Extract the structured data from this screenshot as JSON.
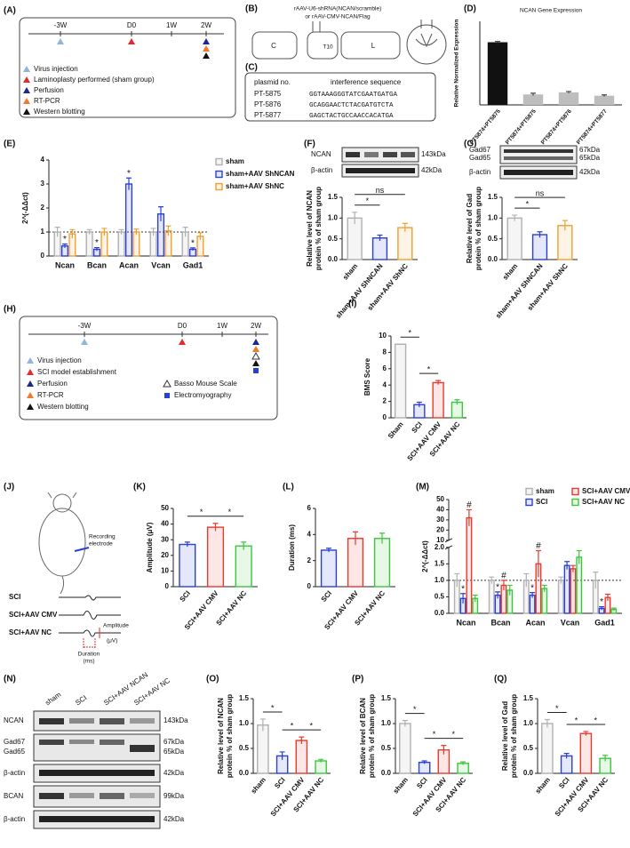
{
  "panels": {
    "A": {
      "label": "(A)",
      "timeline": [
        "-3W",
        "D0",
        "1W",
        "2W"
      ],
      "legend": [
        "Virus injection",
        "Laminoplasty performed (sham group)",
        "Perfusion",
        "RT-PCR",
        "Western blotting"
      ]
    },
    "B": {
      "label": "(B)",
      "construct": [
        "rAAV-U6-shRNA(NCAN/scramble)",
        "or rAAV-CMV-NCAN/Flag"
      ],
      "segments": [
        "C",
        "T10",
        "L"
      ]
    },
    "C": {
      "label": "(C)",
      "header": [
        "plasmid no.",
        "interference sequence"
      ],
      "rows": [
        [
          "PT-5875",
          "GGTAAAGGGTATCGAATGATGA"
        ],
        [
          "PT-5876",
          "GCAGGAACTCTACGATGTCTA"
        ],
        [
          "PT-5877",
          "GAGCTACTGCCAACCACATGA"
        ]
      ]
    },
    "H": {
      "label": "(H)",
      "timeline": [
        "-3W",
        "D0",
        "1W",
        "2W"
      ],
      "legend": [
        "Virus injection",
        "SCI model establishment",
        "Perfusion",
        "RT-PCR",
        "Western blotting"
      ],
      "legend2": [
        "Basso Mouse Scale",
        "Electromyography"
      ]
    },
    "J": {
      "label": "(J)",
      "electrode": [
        "Recording",
        "electrode"
      ],
      "traces": [
        "SCI",
        "SCI+AAV CMV",
        "SCI+AAV NC"
      ],
      "duration": [
        "Duration",
        "(ms)"
      ],
      "amplitude": [
        "Amplitude",
        "(μV)"
      ]
    },
    "N": {
      "label": "(N)",
      "lanes": [
        "sham",
        "SCI",
        "SCI+AAV NCAN",
        "SCI+AAV NC"
      ],
      "rows": [
        {
          "names": [
            "NCAN"
          ],
          "sizes": [
            "143kDa"
          ]
        },
        {
          "names": [
            "Gad67",
            "Gad65"
          ],
          "sizes": [
            "67kDa",
            "65kDa"
          ]
        },
        {
          "names": [
            "β-actin"
          ],
          "sizes": [
            "42kDa"
          ]
        },
        {
          "names": [
            "BCAN"
          ],
          "sizes": [
            "99kDa"
          ]
        },
        {
          "names": [
            "β-actin"
          ],
          "sizes": [
            "42kDa"
          ]
        }
      ]
    }
  },
  "chart_data": [
    {
      "type": "bar",
      "label": "(D)",
      "title": "NCAN Gene Expression",
      "ylabel": [
        "Relative Normalized Expression"
      ],
      "categories": [
        "PT5874+PT5875",
        "PT5874+PT5875",
        "PT5874+PT5876",
        "PT5874+PT5877"
      ],
      "values": [
        1.5,
        0.25,
        0.3,
        0.22
      ],
      "errors": [
        0.02,
        0.03,
        0.02,
        0.02
      ],
      "colors": [
        "#111111",
        "#bdbdbd",
        "#bdbdbd",
        "#bdbdbd"
      ],
      "ylim": [
        0,
        2
      ],
      "bar_style": "solid"
    },
    {
      "type": "bar",
      "label": "(E)",
      "ylabel": [
        "2^(-ΔΔct)"
      ],
      "categories": [
        "Ncan",
        "Bcan",
        "Acan",
        "Vcan",
        "Gad1"
      ],
      "series": [
        {
          "name": "sham",
          "color": "#b0b0b0",
          "values": [
            1,
            1,
            1,
            1,
            1
          ],
          "errors": [
            0.2,
            0.1,
            0.1,
            0.15,
            0.2
          ]
        },
        {
          "name": "sham+AAV ShNCAN",
          "color": "#2a3fd6",
          "values": [
            0.42,
            0.28,
            3.0,
            1.75,
            0.28
          ],
          "errors": [
            0.08,
            0.07,
            0.25,
            0.3,
            0.06
          ]
        },
        {
          "name": "sham+AAV ShNC",
          "color": "#f0a030",
          "values": [
            0.92,
            1.0,
            1.0,
            1.05,
            0.82
          ],
          "errors": [
            0.18,
            0.15,
            0.12,
            0.2,
            0.15
          ]
        }
      ],
      "ylim": [
        0,
        4
      ],
      "yticks": [
        0,
        1,
        2,
        3,
        4
      ],
      "reference_line": 1,
      "legend": "right",
      "bar_style": "outline",
      "markers": [
        {
          "category": 0,
          "series": 1,
          "label": "*"
        },
        {
          "category": 1,
          "series": 1,
          "label": "*"
        },
        {
          "category": 2,
          "series": 1,
          "label": "*"
        },
        {
          "category": 4,
          "series": 1,
          "label": "*"
        }
      ]
    },
    {
      "type": "bar",
      "label": "(F)",
      "blot": {
        "names": [
          "NCAN",
          "β-actin"
        ],
        "sizes": [
          "143kDa",
          "42kDa"
        ]
      },
      "ylabel": [
        "Relative level of NCAN",
        "protein % of sham group"
      ],
      "categories": [
        "sham",
        "sham+AAV ShNCAN",
        "sham+AAV ShNC"
      ],
      "values": [
        1.0,
        0.52,
        0.77
      ],
      "errors": [
        0.14,
        0.07,
        0.1
      ],
      "colors": [
        "#b0b0b0",
        "#2a3fd6",
        "#f0a030"
      ],
      "ylim": [
        0,
        1.5
      ],
      "yticks": [
        {
          "value": 0,
          "label": "0.0"
        },
        0.5,
        {
          "value": 1,
          "label": "1.0"
        },
        1.5
      ],
      "bar_style": "outline",
      "comparisons": [
        {
          "pair": [
            0,
            1
          ],
          "label": "*"
        },
        {
          "pair": [
            0,
            2
          ],
          "label": "ns"
        }
      ]
    },
    {
      "type": "bar",
      "label": "(G)",
      "blot": {
        "names": [
          "Gad67",
          "Gad65",
          "β-actin"
        ],
        "sizes": [
          "67kDa",
          "65kDa",
          "42kDa"
        ]
      },
      "ylabel": [
        "Relative level of Gad",
        "protein % of sham group"
      ],
      "categories": [
        "sham",
        "sham+AAV ShNCAN",
        "sham+AAV ShNC"
      ],
      "values": [
        1.0,
        0.6,
        0.82
      ],
      "errors": [
        0.07,
        0.07,
        0.12
      ],
      "colors": [
        "#b0b0b0",
        "#2a3fd6",
        "#f0a030"
      ],
      "ylim": [
        0,
        1.5
      ],
      "yticks": [
        {
          "value": 0,
          "label": "0.0"
        },
        0.5,
        {
          "value": 1,
          "label": "1.0"
        },
        1.5
      ],
      "bar_style": "outline",
      "comparisons": [
        {
          "pair": [
            0,
            1
          ],
          "label": "*"
        },
        {
          "pair": [
            0,
            2
          ],
          "label": "ns"
        }
      ]
    },
    {
      "type": "bar",
      "label": "(I)",
      "ylabel": [
        "BMS Score"
      ],
      "categories": [
        "Sham",
        "SCI",
        "SCI+AAV CMV",
        "SCI+AAV NC"
      ],
      "values": [
        9,
        1.6,
        4.3,
        1.9
      ],
      "errors": [
        0,
        0.3,
        0.25,
        0.3
      ],
      "colors": [
        "#b0b0b0",
        "#2a3fd6",
        "#e83a2e",
        "#3cc63c"
      ],
      "ylim": [
        0,
        10
      ],
      "yticks": [
        0,
        2,
        4,
        6,
        8,
        10
      ],
      "bar_style": "outline",
      "comparisons": [
        {
          "pair": [
            0,
            1
          ],
          "label": "*"
        },
        {
          "pair": [
            1,
            2
          ],
          "label": "*"
        }
      ]
    },
    {
      "type": "bar",
      "label": "(K)",
      "ylabel": [
        "Amplitude (μV)"
      ],
      "categories": [
        "SCI",
        "SCI+AAV CMV",
        "SCI+AAV NC"
      ],
      "values": [
        27,
        38,
        26
      ],
      "errors": [
        1.5,
        2.5,
        2.5
      ],
      "colors": [
        "#2a3fd6",
        "#e83a2e",
        "#3cc63c"
      ],
      "ylim": [
        0,
        50
      ],
      "yticks": [
        0,
        10,
        20,
        30,
        40,
        50
      ],
      "bar_style": "outline",
      "comparisons": [
        {
          "pair": [
            0,
            1
          ],
          "label": "*"
        },
        {
          "pair": [
            1,
            2
          ],
          "label": "*"
        }
      ]
    },
    {
      "type": "bar",
      "label": "(L)",
      "ylabel": [
        "Duration (ms)"
      ],
      "categories": [
        "SCI",
        "SCI+AAV CMV",
        "SCI+AAV NC"
      ],
      "values": [
        2.8,
        3.7,
        3.7
      ],
      "errors": [
        0.15,
        0.5,
        0.4
      ],
      "colors": [
        "#2a3fd6",
        "#e83a2e",
        "#3cc63c"
      ],
      "ylim": [
        0,
        6
      ],
      "yticks": [
        0,
        2,
        4,
        6
      ],
      "bar_style": "outline"
    },
    {
      "type": "bar",
      "label": "(M)",
      "ylabel": [
        "2^(-ΔΔct)"
      ],
      "categories": [
        "Ncan",
        "Bcan",
        "Acan",
        "Vcan",
        "Gad1"
      ],
      "series": [
        {
          "name": "sham",
          "color": "#b0b0b0",
          "values": [
            1,
            1,
            1,
            1,
            1
          ],
          "errors": [
            0.2,
            0.1,
            0.2,
            0.1,
            0.25
          ]
        },
        {
          "name": "SCI",
          "color": "#2a3fd6",
          "values": [
            0.45,
            0.55,
            0.55,
            1.45,
            0.15
          ],
          "errors": [
            0.15,
            0.1,
            0.08,
            0.12,
            0.05
          ]
        },
        {
          "name": "SCI+AAV CMV",
          "color": "#e83a2e",
          "values": [
            32,
            0.85,
            1.5,
            1.35,
            0.48
          ],
          "errors": [
            8,
            0.15,
            0.4,
            0.1,
            0.1
          ]
        },
        {
          "name": "SCI+AAV NC",
          "color": "#3cc63c",
          "values": [
            0.45,
            0.7,
            0.75,
            1.7,
            0.12
          ],
          "errors": [
            0.1,
            0.15,
            0.1,
            0.2,
            0.04
          ]
        }
      ],
      "ylim": [
        0,
        50
      ],
      "ybreak": [
        2,
        10
      ],
      "yticks": [
        {
          "value": 0,
          "label": "0.0"
        },
        0.5,
        {
          "value": 1,
          "label": "1.0"
        },
        1.5,
        {
          "value": 2,
          "label": "2.0"
        },
        10,
        20,
        30,
        40,
        50
      ],
      "reference_line": 1,
      "legend": "top",
      "bar_style": "outline",
      "markers": [
        {
          "category": 0,
          "series": 1,
          "label": "*"
        },
        {
          "category": 1,
          "series": 1,
          "label": "*"
        },
        {
          "category": 2,
          "series": 1,
          "label": "*"
        },
        {
          "category": 4,
          "series": 1,
          "label": "*"
        },
        {
          "category": 0,
          "series": 2,
          "label": "#"
        },
        {
          "category": 1,
          "series": 2,
          "label": "#"
        },
        {
          "category": 2,
          "series": 2,
          "label": "#"
        }
      ]
    },
    {
      "type": "bar",
      "label": "(O)",
      "ylabel": [
        "Relative level of  NCAN",
        "protein % of sham group"
      ],
      "categories": [
        "sham",
        "SCI",
        "SCI+AAV CMV",
        "SCI+AAV NC"
      ],
      "values": [
        0.97,
        0.35,
        0.66,
        0.25
      ],
      "errors": [
        0.12,
        0.08,
        0.07,
        0.03
      ],
      "colors": [
        "#b0b0b0",
        "#2a3fd6",
        "#e83a2e",
        "#3cc63c"
      ],
      "ylim": [
        0,
        1.5
      ],
      "yticks": [
        {
          "value": 0,
          "label": "0.0"
        },
        0.5,
        {
          "value": 1,
          "label": "1.0"
        },
        1.5
      ],
      "bar_style": "outline",
      "comparisons": [
        {
          "pair": [
            0,
            1
          ],
          "label": "*"
        },
        {
          "pair": [
            1,
            2
          ],
          "label": "*"
        },
        {
          "pair": [
            2,
            3
          ],
          "label": "*"
        }
      ]
    },
    {
      "type": "bar",
      "label": "(P)",
      "ylabel": [
        "Relative level of  BCAN",
        "protein % of sham group"
      ],
      "categories": [
        "sham",
        "SCI",
        "SCI+AAV CMV",
        "SCI+AAV NC"
      ],
      "values": [
        1.0,
        0.22,
        0.47,
        0.2
      ],
      "errors": [
        0.06,
        0.03,
        0.09,
        0.03
      ],
      "colors": [
        "#b0b0b0",
        "#2a3fd6",
        "#e83a2e",
        "#3cc63c"
      ],
      "ylim": [
        0,
        1.5
      ],
      "yticks": [
        {
          "value": 0,
          "label": "0.0"
        },
        0.5,
        {
          "value": 1,
          "label": "1.0"
        },
        1.5
      ],
      "bar_style": "outline",
      "comparisons": [
        {
          "pair": [
            0,
            1
          ],
          "label": "*"
        },
        {
          "pair": [
            1,
            2
          ],
          "label": "*"
        },
        {
          "pair": [
            2,
            3
          ],
          "label": "*"
        }
      ]
    },
    {
      "type": "bar",
      "label": "(Q)",
      "ylabel": [
        "Relative level of  Gad",
        "protein % of sham group"
      ],
      "categories": [
        "sham",
        "SCI",
        "SCI+AAV CMV",
        "SCI+AAV NC"
      ],
      "values": [
        1.0,
        0.35,
        0.8,
        0.3
      ],
      "errors": [
        0.08,
        0.05,
        0.04,
        0.06
      ],
      "colors": [
        "#b0b0b0",
        "#2a3fd6",
        "#e83a2e",
        "#3cc63c"
      ],
      "ylim": [
        0,
        1.5
      ],
      "yticks": [
        {
          "value": 0,
          "label": "0.0"
        },
        0.5,
        {
          "value": 1,
          "label": "1.0"
        },
        1.5
      ],
      "bar_style": "outline",
      "comparisons": [
        {
          "pair": [
            0,
            1
          ],
          "label": "*"
        },
        {
          "pair": [
            1,
            2
          ],
          "label": "*"
        },
        {
          "pair": [
            2,
            3
          ],
          "label": "*"
        }
      ]
    }
  ]
}
